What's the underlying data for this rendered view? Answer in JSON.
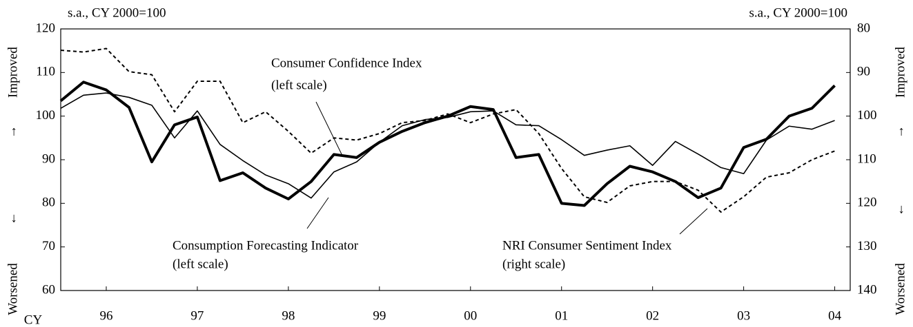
{
  "chart_data": {
    "type": "line",
    "left_unit": "s.a., CY 2000=100",
    "right_unit": "s.a., CY 2000=100",
    "x_axis_label": "CY",
    "side_labels": {
      "top": "Improved",
      "up": "↑",
      "down": "↓",
      "bottom": "Worsened"
    },
    "x": [
      1996,
      1996.25,
      1996.5,
      1996.75,
      1997,
      1997.25,
      1997.5,
      1997.75,
      1998,
      1998.25,
      1998.5,
      1998.75,
      1999,
      1999.25,
      1999.5,
      1999.75,
      2000,
      2000.25,
      2000.5,
      2000.75,
      2001,
      2001.25,
      2001.5,
      2001.75,
      2002,
      2002.25,
      2002.5,
      2002.75,
      2003,
      2003.25,
      2003.5,
      2003.75,
      2004,
      2004.25,
      2004.5
    ],
    "xlim": [
      1996,
      2004.67
    ],
    "xticks": [
      {
        "value": 1996.5,
        "label": "96"
      },
      {
        "value": 1997.5,
        "label": "97"
      },
      {
        "value": 1998.5,
        "label": "98"
      },
      {
        "value": 1999.5,
        "label": "99"
      },
      {
        "value": 2000.5,
        "label": "00"
      },
      {
        "value": 2001.5,
        "label": "01"
      },
      {
        "value": 2002.5,
        "label": "02"
      },
      {
        "value": 2003.5,
        "label": "03"
      },
      {
        "value": 2004.5,
        "label": "04"
      }
    ],
    "ylim": [
      60,
      120
    ],
    "yticks": [
      60,
      70,
      80,
      90,
      100,
      110,
      120
    ],
    "y2lim": [
      140,
      80
    ],
    "y2ticks": [
      80,
      90,
      100,
      110,
      120,
      130,
      140
    ],
    "series": [
      {
        "name": "Consumer Confidence Index",
        "scale_note": "(left scale)",
        "color": "#000",
        "style": "thick",
        "values": [
          103.5,
          107.8,
          106,
          102,
          89.5,
          98,
          99.8,
          85.2,
          87,
          83.5,
          81,
          85,
          91.2,
          90.5,
          94,
          96.5,
          98.5,
          100,
          102.2,
          101.5,
          90.5,
          91.2,
          80,
          79.5,
          84.5,
          88.5,
          87.2,
          85,
          81.3,
          83.5,
          92.8,
          94.7,
          100,
          101.8,
          107
        ]
      },
      {
        "name": "Consumption Forecasting Indicator",
        "scale_note": "(left scale)",
        "color": "#000",
        "style": "thin",
        "values": [
          101.8,
          104.8,
          105.3,
          104.3,
          102.5,
          95,
          101.2,
          93.5,
          89.8,
          86.5,
          84.5,
          81.2,
          87.2,
          89.5,
          94,
          97.8,
          99.2,
          99.7,
          101,
          101.2,
          98,
          97.8,
          94.6,
          91,
          92.2,
          93.2,
          88.7,
          94.2,
          91.3,
          88.2,
          86.8,
          94.5,
          97.7,
          97,
          99
        ]
      },
      {
        "name": "NRI Consumer Sentiment Index",
        "scale_note": "(right scale)",
        "color": "#000",
        "style": "dotted",
        "axis": "y2",
        "values": [
          84.9,
          85.3,
          84.5,
          89.8,
          90.5,
          99,
          92,
          92,
          101.5,
          99,
          103.5,
          108.5,
          105,
          105.5,
          104,
          101.5,
          101,
          99.5,
          101.5,
          99.5,
          98.5,
          104,
          112,
          118.5,
          119.8,
          116,
          115,
          115,
          117,
          122,
          118.5,
          114,
          113,
          110,
          108
        ]
      }
    ]
  }
}
